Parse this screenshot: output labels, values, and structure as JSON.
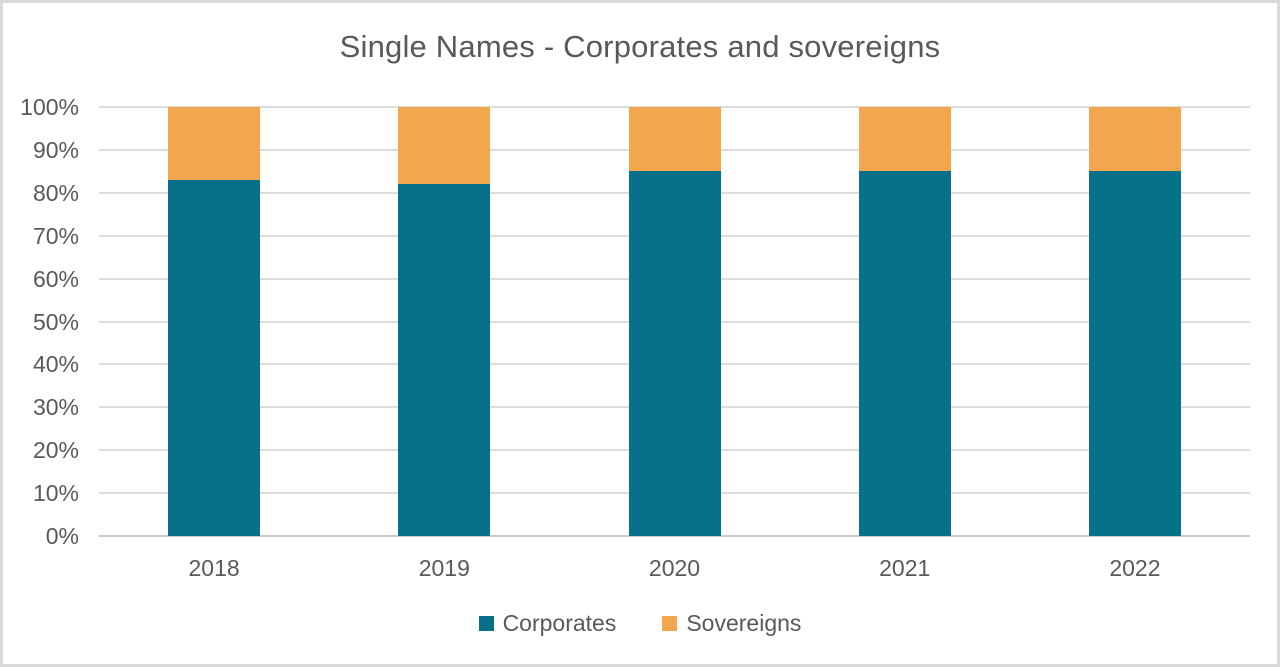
{
  "title": "Single Names - Corporates and sovereigns",
  "colors": {
    "corporates": "#07718C",
    "sovereigns": "#F2A64E",
    "gridline": "#DCDCDC",
    "axis_line": "#C9C9C9",
    "text": "#595959",
    "frame_border": "#D9D9D9"
  },
  "chart_data": {
    "type": "bar",
    "stacked": true,
    "percent_stacked": true,
    "title": "Single Names - Corporates and sovereigns",
    "categories": [
      "2018",
      "2019",
      "2020",
      "2021",
      "2022"
    ],
    "series": [
      {
        "name": "Corporates",
        "color": "#07718C",
        "values": [
          83,
          82,
          85,
          85,
          85
        ]
      },
      {
        "name": "Sovereigns",
        "color": "#F2A64E",
        "values": [
          17,
          18,
          15,
          15,
          15
        ]
      }
    ],
    "xlabel": "",
    "ylabel": "",
    "ylim": [
      0,
      100
    ],
    "ytick_step": 10,
    "ytick_labels": [
      "0%",
      "10%",
      "20%",
      "30%",
      "40%",
      "50%",
      "60%",
      "70%",
      "80%",
      "90%",
      "100%"
    ],
    "grid": "horizontal",
    "legend_position": "bottom"
  }
}
